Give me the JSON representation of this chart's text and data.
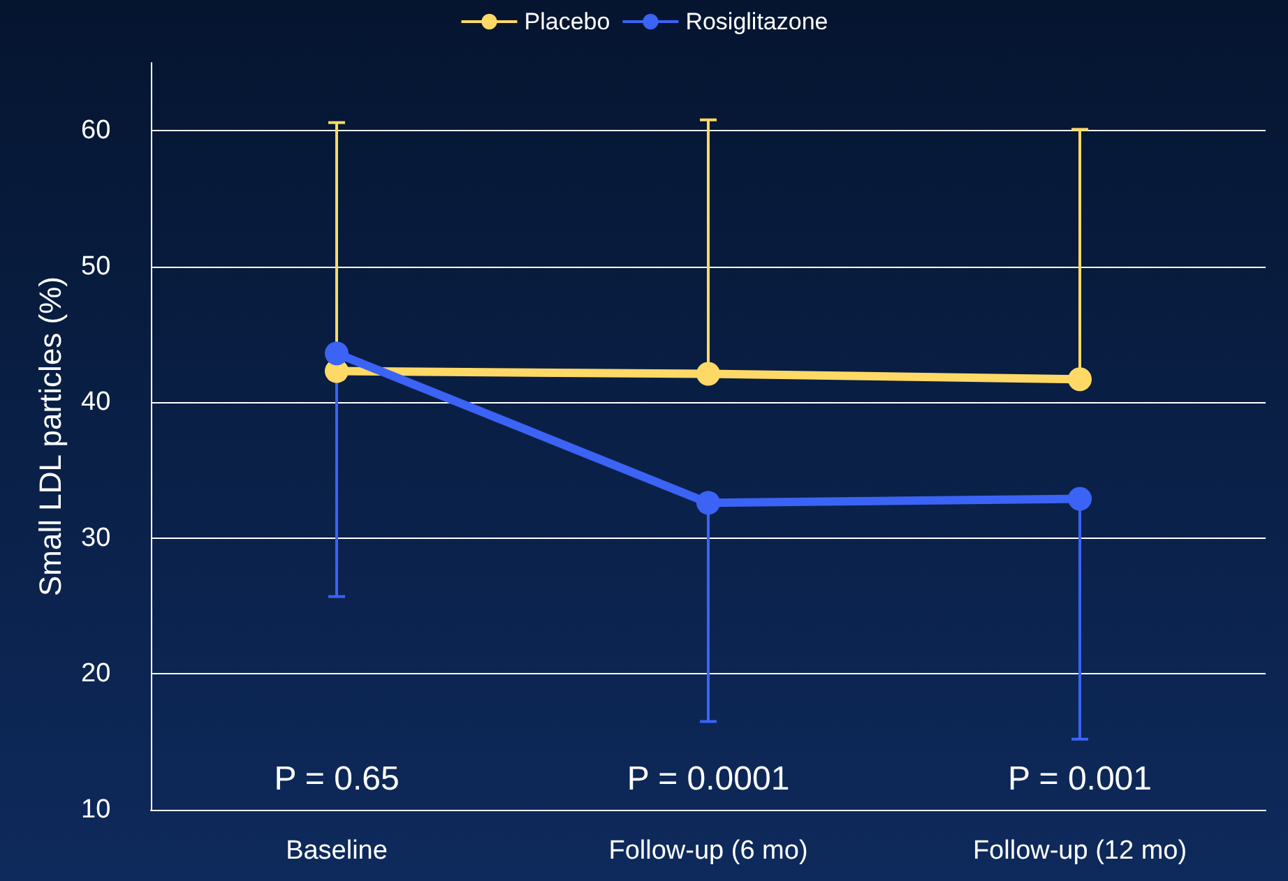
{
  "chart_data": {
    "type": "line",
    "ylabel": "Small LDL particles (%)",
    "categories": [
      "Baseline",
      "Follow-up (6 mo)",
      "Follow-up (12 mo)"
    ],
    "series": [
      {
        "name": "Placebo",
        "color": "#ffd966",
        "values": [
          42.3,
          42.1,
          41.7
        ],
        "errors": [
          [
            42.3,
            60.6
          ],
          [
            42.1,
            60.8
          ],
          [
            41.7,
            60.1
          ]
        ]
      },
      {
        "name": "Rosiglitazone",
        "color": "#3b63f5",
        "values": [
          43.6,
          32.6,
          32.9
        ],
        "errors": [
          [
            25.7,
            43.6
          ],
          [
            16.5,
            32.6
          ],
          [
            15.2,
            32.9
          ]
        ]
      }
    ],
    "ylim": [
      10,
      65
    ],
    "yticks": [
      10,
      20,
      30,
      40,
      50,
      60
    ],
    "grid": "y",
    "legend": "top",
    "marker": "circle",
    "line_style": "solid",
    "annotations": [
      "P = 0.65",
      "P = 0.0001",
      "P = 0.001"
    ]
  }
}
